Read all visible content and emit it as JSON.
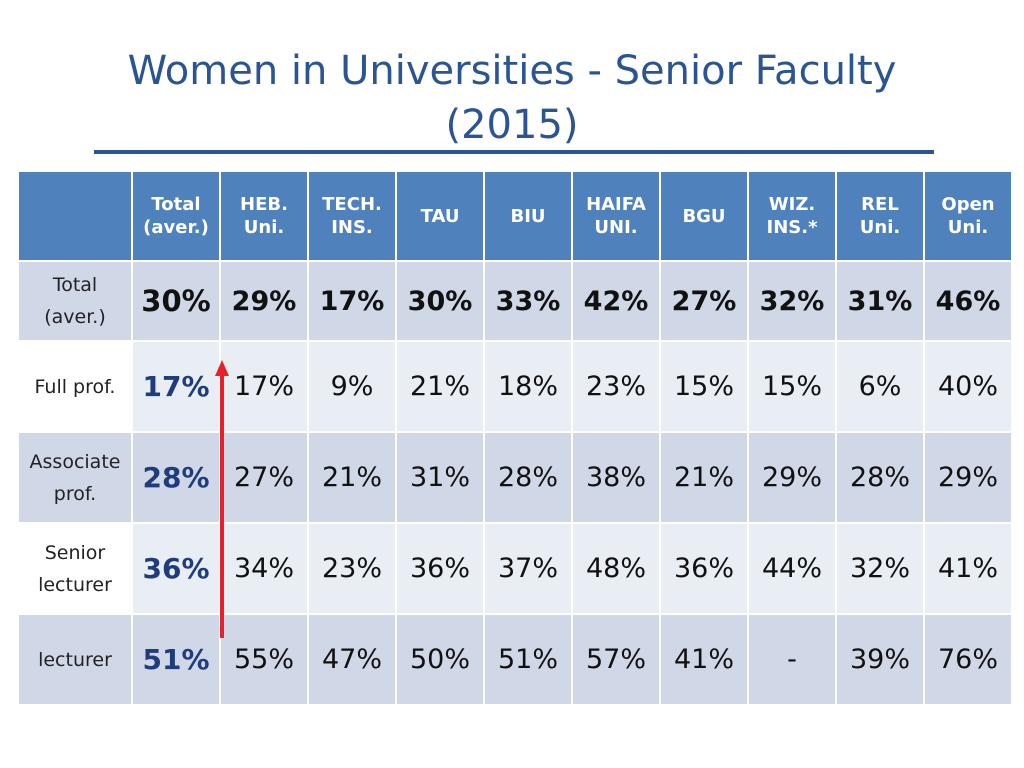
{
  "title_line1": "Women in Universities - Senior Faculty",
  "title_line2": "(2015)",
  "columns": [
    "Total (aver.)",
    "HEB. Uni.",
    "TECH. INS.",
    "TAU",
    "BIU",
    "HAIFA UNI.",
    "BGU",
    "WIZ. INS.*",
    "REL Uni.",
    "Open Uni."
  ],
  "column_lines": [
    [
      "Total",
      "(aver.)"
    ],
    [
      "HEB.",
      "Uni."
    ],
    [
      "TECH.",
      "INS."
    ],
    [
      "TAU",
      ""
    ],
    [
      "BIU",
      ""
    ],
    [
      "HAIFA",
      "UNI."
    ],
    [
      "BGU",
      ""
    ],
    [
      "WIZ.",
      "INS.*"
    ],
    [
      "REL",
      "Uni."
    ],
    [
      "Open",
      "Uni."
    ]
  ],
  "rows": [
    {
      "label_lines": [
        "Total",
        "(aver.)"
      ],
      "values": [
        "30%",
        "29%",
        "17%",
        "30%",
        "33%",
        "42%",
        "27%",
        "32%",
        "31%",
        "46%"
      ]
    },
    {
      "label_lines": [
        "Full prof.",
        ""
      ],
      "values": [
        "17%",
        "17%",
        "9%",
        "21%",
        "18%",
        "23%",
        "15%",
        "15%",
        "6%",
        "40%"
      ]
    },
    {
      "label_lines": [
        "Associate",
        "prof."
      ],
      "values": [
        "28%",
        "27%",
        "21%",
        "31%",
        "28%",
        "38%",
        "21%",
        "29%",
        "28%",
        "29%"
      ]
    },
    {
      "label_lines": [
        "Senior",
        "lecturer"
      ],
      "values": [
        "36%",
        "34%",
        "23%",
        "36%",
        "37%",
        "48%",
        "36%",
        "44%",
        "32%",
        "41%"
      ]
    },
    {
      "label_lines": [
        "lecturer",
        ""
      ],
      "values": [
        "51%",
        "55%",
        "47%",
        "50%",
        "51%",
        "57%",
        "41%",
        "-",
        "39%",
        "76%"
      ]
    }
  ],
  "colors": {
    "title": "#2a5592",
    "header_bg": "#4f81bd",
    "band_dark": "#d0d8e8",
    "band_light": "#e9edf4",
    "arrow": "#e8202a"
  },
  "icons": {
    "arrow": "up-arrow-icon"
  }
}
